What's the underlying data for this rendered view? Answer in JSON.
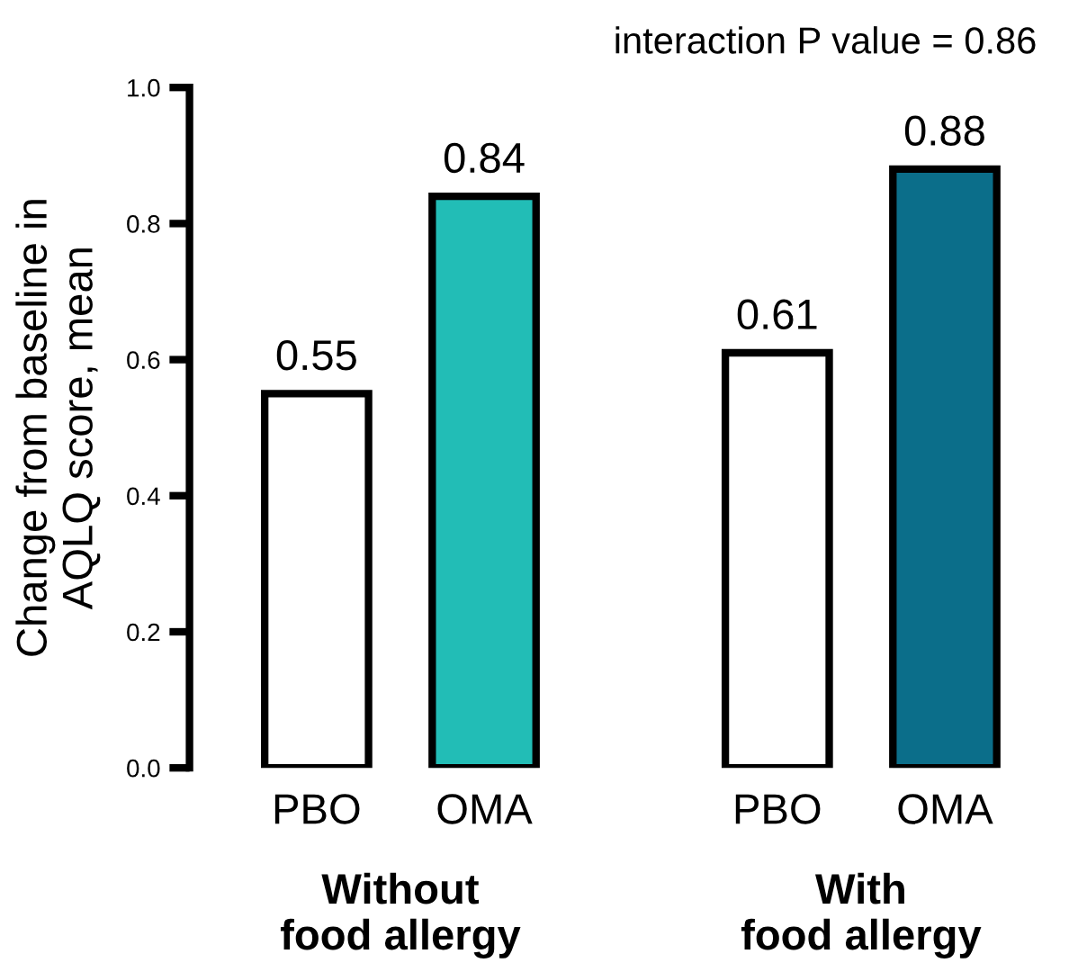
{
  "chart_data": {
    "type": "bar",
    "ylabel": "Change from baseline in\nAQLQ score, mean",
    "categories": [
      "PBO",
      "OMA",
      "PBO",
      "OMA"
    ],
    "values": [
      0.55,
      0.84,
      0.61,
      0.88
    ],
    "colors": [
      "#ffffff",
      "#22bdb6",
      "#ffffff",
      "#0b6e8a"
    ],
    "ylim": [
      0,
      1.0
    ],
    "yticks": [
      {
        "value": 0,
        "label": "0.0"
      },
      {
        "value": 0.2,
        "label": "0.2"
      },
      {
        "value": 0.4,
        "label": "0.4"
      },
      {
        "value": 0.6,
        "label": "0.6"
      },
      {
        "value": 0.8,
        "label": "0.8"
      },
      {
        "value": 1.0,
        "label": "1.0"
      }
    ],
    "data_labels": true,
    "grid": false,
    "legend": false,
    "annotations": [
      "interaction P value = 0.86",
      "Without\nfood allergy",
      "With\nfood allergy"
    ]
  }
}
